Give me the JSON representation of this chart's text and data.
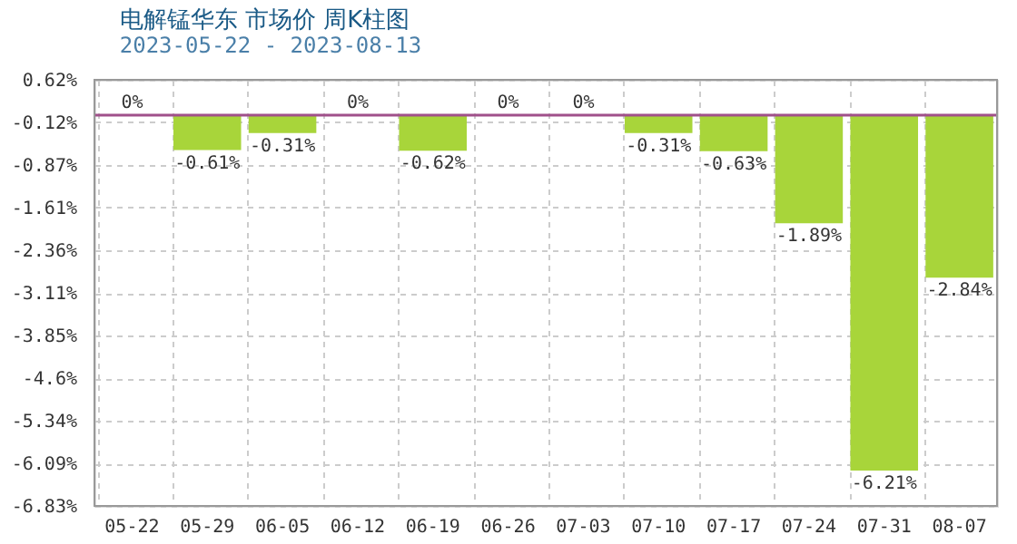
{
  "chart_data": {
    "type": "bar",
    "title": "电解锰华东 市场价 周K柱图",
    "subtitle": "2023-05-22 - 2023-08-13",
    "categories": [
      "05-22",
      "05-29",
      "06-05",
      "06-12",
      "06-19",
      "06-26",
      "07-03",
      "07-10",
      "07-17",
      "07-24",
      "07-31",
      "08-07"
    ],
    "values": [
      0,
      -0.61,
      -0.31,
      0,
      -0.62,
      0,
      0,
      -0.31,
      -0.63,
      -1.89,
      -6.21,
      -2.84
    ],
    "value_labels": [
      "0%",
      "-0.61%",
      "-0.31%",
      "0%",
      "-0.62%",
      "0%",
      "0%",
      "-0.31%",
      "-0.63%",
      "-1.89%",
      "-6.21%",
      "-2.84%"
    ],
    "color": "#a8d53a",
    "ylim": [
      -6.83,
      0.62
    ],
    "yticks": [
      {
        "value": 0.62,
        "label": "0.62%"
      },
      {
        "value": -0.12,
        "label": "-0.12%"
      },
      {
        "value": -0.87,
        "label": "-0.87%"
      },
      {
        "value": -1.61,
        "label": "-1.61%"
      },
      {
        "value": -2.36,
        "label": "-2.36%"
      },
      {
        "value": -3.11,
        "label": "-3.11%"
      },
      {
        "value": -3.85,
        "label": "-3.85%"
      },
      {
        "value": -4.6,
        "label": "-4.6%"
      },
      {
        "value": -5.34,
        "label": "-5.34%"
      },
      {
        "value": -6.09,
        "label": "-6.09%"
      },
      {
        "value": -6.83,
        "label": "-6.83%"
      }
    ],
    "ref_lines": [
      {
        "axis": "y",
        "value": 0,
        "color": "#a0508a"
      }
    ],
    "grid": true
  }
}
